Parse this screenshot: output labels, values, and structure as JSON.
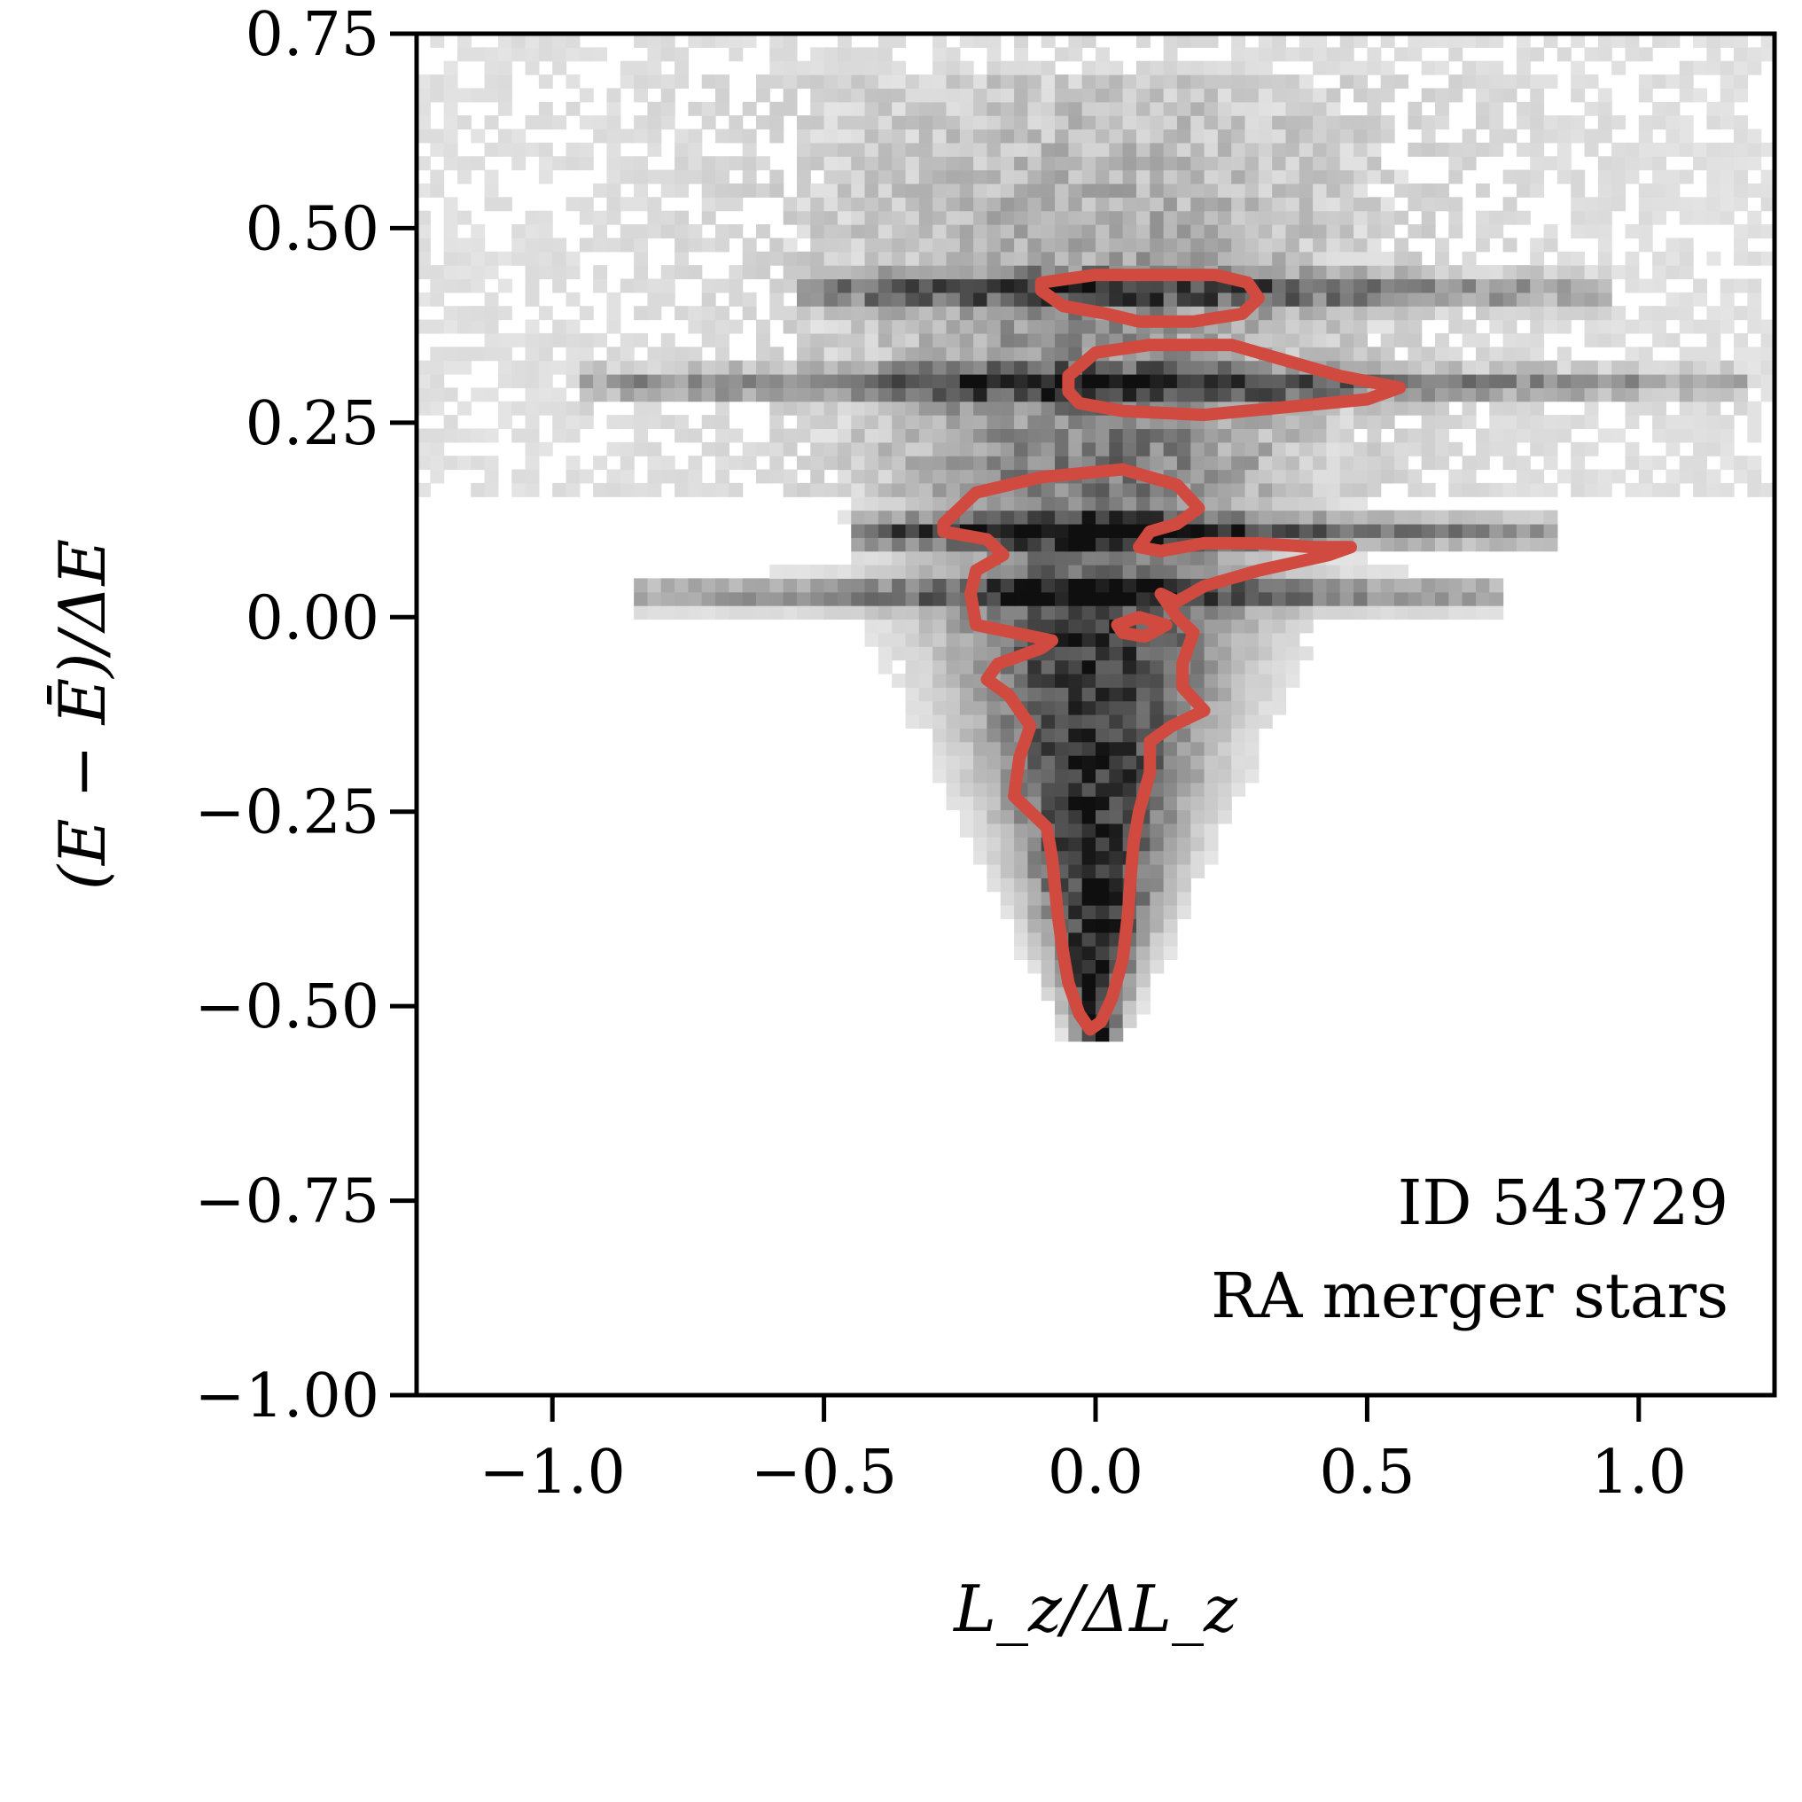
{
  "chart_data": {
    "type": "heatmap",
    "xlabel": "L_z/ΔL_z",
    "ylabel": "(E − Ē)/ΔE",
    "xlim": [
      -1.25,
      1.25
    ],
    "ylim": [
      -1.0,
      0.75
    ],
    "x_ticks": [
      -1.0,
      -0.5,
      0.0,
      0.5,
      1.0
    ],
    "x_tick_labels": [
      "−1.0",
      "−0.5",
      "0.0",
      "0.5",
      "1.0"
    ],
    "y_ticks": [
      0.75,
      0.5,
      0.25,
      0.0,
      -0.25,
      -0.5,
      -0.75,
      -1.0
    ],
    "y_tick_labels": [
      "0.75",
      "0.50",
      "0.25",
      "0.00",
      "−0.25",
      "−0.50",
      "−0.75",
      "−1.00"
    ],
    "annotations": [
      "ID 543729",
      "RA merger stars"
    ],
    "colormap": "greys",
    "contour_color": "#d04a3f",
    "grid": false,
    "histogram_ridges": [
      {
        "y": 0.42,
        "x_range": [
          -0.55,
          0.95
        ],
        "strength": 0.55
      },
      {
        "y": 0.3,
        "x_range": [
          -0.95,
          1.2
        ],
        "strength": 0.6
      },
      {
        "y": 0.11,
        "x_range": [
          -0.45,
          0.85
        ],
        "strength": 0.7
      },
      {
        "y": 0.03,
        "x_range": [
          -0.85,
          0.75
        ],
        "strength": 0.6
      }
    ],
    "contours": [
      {
        "name": "",
        "points": [
          [
            -0.1,
            0.43
          ],
          [
            0.0,
            0.44
          ],
          [
            0.12,
            0.44
          ],
          [
            0.22,
            0.44
          ],
          [
            0.28,
            0.43
          ],
          [
            0.3,
            0.41
          ],
          [
            0.27,
            0.39
          ],
          [
            0.18,
            0.38
          ],
          [
            0.08,
            0.38
          ],
          [
            0.02,
            0.39
          ],
          [
            -0.06,
            0.4
          ],
          [
            -0.1,
            0.42
          ]
        ]
      },
      {
        "name": "",
        "points": [
          [
            -0.05,
            0.31
          ],
          [
            0.0,
            0.34
          ],
          [
            0.1,
            0.35
          ],
          [
            0.25,
            0.35
          ],
          [
            0.35,
            0.33
          ],
          [
            0.45,
            0.31
          ],
          [
            0.56,
            0.295
          ],
          [
            0.5,
            0.28
          ],
          [
            0.35,
            0.27
          ],
          [
            0.2,
            0.26
          ],
          [
            0.05,
            0.265
          ],
          [
            -0.03,
            0.275
          ],
          [
            -0.05,
            0.29
          ]
        ]
      },
      {
        "name": "",
        "points": [
          [
            -0.28,
            0.12
          ],
          [
            -0.22,
            0.16
          ],
          [
            -0.1,
            0.18
          ],
          [
            0.05,
            0.19
          ],
          [
            0.15,
            0.17
          ],
          [
            0.19,
            0.14
          ],
          [
            0.15,
            0.12
          ],
          [
            0.1,
            0.11
          ],
          [
            0.08,
            0.09
          ],
          [
            0.12,
            0.085
          ],
          [
            0.2,
            0.095
          ],
          [
            0.3,
            0.095
          ],
          [
            0.4,
            0.09
          ],
          [
            0.47,
            0.09
          ],
          [
            0.43,
            0.08
          ],
          [
            0.3,
            0.06
          ],
          [
            0.2,
            0.04
          ],
          [
            0.15,
            0.02
          ],
          [
            0.12,
            0.03
          ],
          [
            0.15,
            0.0
          ],
          [
            0.18,
            -0.02
          ],
          [
            0.16,
            -0.06
          ],
          [
            0.16,
            -0.09
          ],
          [
            0.2,
            -0.12
          ],
          [
            0.14,
            -0.14
          ],
          [
            0.1,
            -0.16
          ],
          [
            0.1,
            -0.2
          ],
          [
            0.08,
            -0.25
          ],
          [
            0.07,
            -0.29
          ],
          [
            0.065,
            -0.33
          ],
          [
            0.06,
            -0.38
          ],
          [
            0.05,
            -0.44
          ],
          [
            0.03,
            -0.49
          ],
          [
            0.01,
            -0.52
          ],
          [
            -0.01,
            -0.53
          ],
          [
            -0.03,
            -0.51
          ],
          [
            -0.05,
            -0.47
          ],
          [
            -0.06,
            -0.43
          ],
          [
            -0.07,
            -0.38
          ],
          [
            -0.08,
            -0.31
          ],
          [
            -0.09,
            -0.27
          ],
          [
            -0.15,
            -0.23
          ],
          [
            -0.14,
            -0.18
          ],
          [
            -0.12,
            -0.14
          ],
          [
            -0.16,
            -0.1
          ],
          [
            -0.2,
            -0.08
          ],
          [
            -0.18,
            -0.06
          ],
          [
            -0.1,
            -0.04
          ],
          [
            -0.08,
            -0.03
          ],
          [
            -0.15,
            -0.02
          ],
          [
            -0.22,
            -0.01
          ],
          [
            -0.23,
            0.03
          ],
          [
            -0.22,
            0.06
          ],
          [
            -0.17,
            0.08
          ],
          [
            -0.2,
            0.1
          ],
          [
            -0.28,
            0.11
          ]
        ]
      },
      {
        "name": "",
        "points": [
          [
            0.04,
            -0.01
          ],
          [
            0.08,
            0.0
          ],
          [
            0.13,
            -0.01
          ],
          [
            0.09,
            -0.025
          ],
          [
            0.05,
            -0.02
          ]
        ]
      }
    ]
  }
}
